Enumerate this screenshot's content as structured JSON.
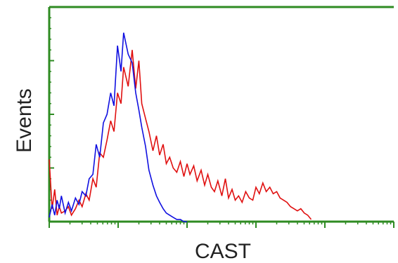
{
  "chart_data": {
    "type": "area",
    "title": "",
    "xlabel": "CAST",
    "ylabel": "Events",
    "x_scale": "log",
    "xlim": [
      1,
      100000
    ],
    "ylim": [
      0,
      1
    ],
    "x_major_ticks": [
      1,
      10,
      100,
      1000,
      10000,
      100000
    ],
    "grid": false,
    "legend": "none",
    "colors": {
      "axis": "#2e8b22",
      "series_a": "#e01010",
      "series_b": "#1010e0"
    },
    "series": [
      {
        "color": "#e01010",
        "x": [
          1.0,
          1.1,
          1.2,
          1.3,
          1.4,
          1.5,
          1.7,
          1.9,
          2.1,
          2.4,
          2.7,
          3.0,
          3.4,
          3.8,
          4.3,
          4.8,
          5.4,
          6.1,
          6.9,
          7.8,
          8.7,
          9.8,
          11,
          12,
          14,
          16,
          18,
          20,
          22,
          25,
          28,
          32,
          36,
          40,
          45,
          50,
          56,
          63,
          71,
          80,
          90,
          100,
          110,
          125,
          140,
          160,
          180,
          200,
          225,
          250,
          280,
          320,
          360,
          400,
          450,
          500,
          560,
          630,
          710,
          800,
          900,
          1000,
          1120,
          1260,
          1410,
          1590,
          1780,
          2000,
          2240,
          2520,
          2820,
          3170,
          3560,
          3990,
          4480,
          5020,
          5640,
          6320
        ],
        "values": [
          0.29,
          0.06,
          0.15,
          0.03,
          0.07,
          0.04,
          0.05,
          0.07,
          0.03,
          0.06,
          0.1,
          0.07,
          0.13,
          0.1,
          0.2,
          0.16,
          0.32,
          0.3,
          0.38,
          0.47,
          0.42,
          0.6,
          0.55,
          0.72,
          0.63,
          0.8,
          0.62,
          0.75,
          0.55,
          0.48,
          0.42,
          0.33,
          0.4,
          0.31,
          0.36,
          0.27,
          0.3,
          0.25,
          0.23,
          0.28,
          0.21,
          0.27,
          0.22,
          0.26,
          0.19,
          0.24,
          0.17,
          0.22,
          0.16,
          0.14,
          0.19,
          0.12,
          0.2,
          0.11,
          0.15,
          0.1,
          0.12,
          0.09,
          0.14,
          0.11,
          0.1,
          0.16,
          0.13,
          0.18,
          0.14,
          0.16,
          0.13,
          0.14,
          0.11,
          0.1,
          0.09,
          0.07,
          0.06,
          0.05,
          0.06,
          0.04,
          0.03,
          0.01
        ]
      },
      {
        "color": "#1010e0",
        "x": [
          1.0,
          1.1,
          1.2,
          1.3,
          1.4,
          1.5,
          1.7,
          1.9,
          2.1,
          2.4,
          2.7,
          3.0,
          3.4,
          3.8,
          4.3,
          4.8,
          5.4,
          6.1,
          6.9,
          7.8,
          8.7,
          9.8,
          11,
          12,
          14,
          16,
          18,
          20,
          22,
          25,
          28,
          32,
          36,
          40,
          45,
          50,
          56,
          63,
          71,
          80,
          90,
          100
        ],
        "values": [
          0.02,
          0.08,
          0.03,
          0.1,
          0.06,
          0.12,
          0.04,
          0.09,
          0.05,
          0.11,
          0.08,
          0.14,
          0.12,
          0.2,
          0.22,
          0.36,
          0.3,
          0.46,
          0.5,
          0.6,
          0.54,
          0.82,
          0.7,
          0.88,
          0.78,
          0.74,
          0.6,
          0.52,
          0.44,
          0.35,
          0.24,
          0.17,
          0.12,
          0.09,
          0.06,
          0.04,
          0.03,
          0.02,
          0.01,
          0.01,
          0.0,
          0.0
        ]
      }
    ]
  }
}
